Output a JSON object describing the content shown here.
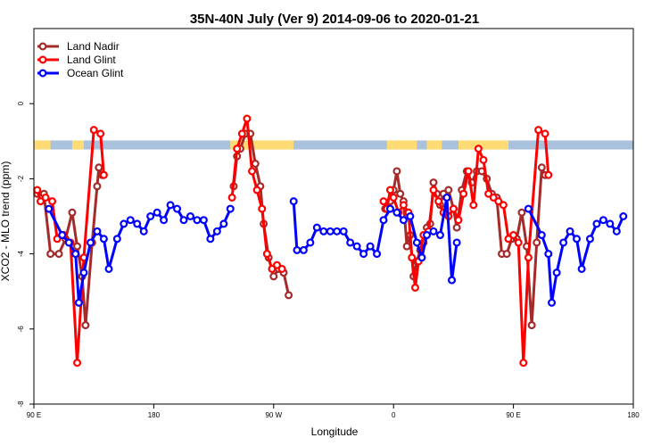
{
  "chart_data": {
    "type": "line",
    "title": "35N-40N July (Ver 9)   2014-09-06 to 2020-01-21",
    "xlabel": "Longitude",
    "ylabel": "XCO2 - MLO trend (ppm)",
    "xlim": [
      0,
      360
    ],
    "ylim": [
      -8,
      2
    ],
    "x_ticks": [
      {
        "value": 0,
        "label": "90 E"
      },
      {
        "value": 72,
        "label": "180"
      },
      {
        "value": 144,
        "label": "90 W"
      },
      {
        "value": 216,
        "label": "0"
      },
      {
        "value": 288,
        "label": "90 E"
      },
      {
        "value": 360,
        "label": "180"
      }
    ],
    "y_ticks": [
      {
        "value": 0,
        "label": "0"
      },
      {
        "value": -2,
        "label": "-2"
      },
      {
        "value": -4,
        "label": "-4"
      },
      {
        "value": -6,
        "label": "-6"
      },
      {
        "value": -8,
        "label": "-8"
      }
    ],
    "legend_position": "top-left",
    "grid": false,
    "land_ocean_band": {
      "y_range": [
        -1.22,
        -0.98
      ],
      "land_color": "#FFDC73",
      "ocean_color": "#A9C1DB",
      "land_segments": [
        [
          0,
          10
        ],
        [
          23,
          30
        ],
        [
          118,
          156
        ],
        [
          212,
          230
        ],
        [
          236,
          245
        ],
        [
          255,
          262
        ],
        [
          262,
          285
        ]
      ]
    },
    "series": [
      {
        "name": "Land Nadir",
        "color": "#A52A2A",
        "points": [
          [
            2,
            -2.4
          ],
          [
            6,
            -2.4
          ],
          [
            10,
            -4.0
          ],
          [
            15,
            -4.0
          ],
          [
            19,
            -3.6
          ],
          [
            23,
            -2.9
          ],
          [
            26,
            -3.8
          ],
          [
            29,
            -4.6
          ],
          [
            31,
            -5.9
          ],
          [
            35,
            -3.7
          ],
          [
            38,
            -2.2
          ],
          [
            39,
            -1.7
          ],
          [
            41,
            -1.9
          ],
          [
            120,
            -2.2
          ],
          [
            122,
            -1.4
          ],
          [
            124,
            -1.2
          ],
          [
            127,
            -0.8
          ],
          [
            130,
            -0.8
          ],
          [
            133,
            -1.6
          ],
          [
            136,
            -2.2
          ],
          [
            138,
            -3.2
          ],
          [
            141,
            -4.1
          ],
          [
            144,
            -4.6
          ],
          [
            147,
            -4.4
          ],
          [
            150,
            -4.5
          ],
          [
            153,
            -5.1
          ],
          [
            211,
            -2.8
          ],
          [
            214,
            -2.6
          ],
          [
            216,
            -2.3
          ],
          [
            218,
            -1.8
          ],
          [
            220,
            -2.4
          ],
          [
            222,
            -2.6
          ],
          [
            224,
            -3.8
          ],
          [
            226,
            -3.5
          ],
          [
            228,
            -4.6
          ],
          [
            230,
            -4.2
          ],
          [
            232,
            -3.9
          ],
          [
            234,
            -3.7
          ],
          [
            236,
            -3.3
          ],
          [
            238,
            -3.2
          ],
          [
            240,
            -2.1
          ],
          [
            242,
            -2.4
          ],
          [
            244,
            -2.7
          ],
          [
            246,
            -2.4
          ],
          [
            249,
            -2.3
          ],
          [
            252,
            -2.8
          ],
          [
            254,
            -3.3
          ],
          [
            257,
            -2.3
          ],
          [
            260,
            -1.8
          ],
          [
            263,
            -2.1
          ],
          [
            266,
            -1.8
          ],
          [
            269,
            -1.8
          ],
          [
            272,
            -2.0
          ],
          [
            275,
            -2.4
          ],
          [
            278,
            -2.5
          ],
          [
            281,
            -4.0
          ],
          [
            284,
            -4.0
          ],
          [
            287,
            -3.6
          ],
          [
            290,
            -3.6
          ],
          [
            293,
            -2.9
          ],
          [
            296,
            -3.8
          ],
          [
            299,
            -5.9
          ],
          [
            302,
            -3.7
          ],
          [
            305,
            -1.7
          ],
          [
            307,
            -1.9
          ]
        ]
      },
      {
        "name": "Land Glint",
        "color": "#FF0000",
        "points": [
          [
            2,
            -2.3
          ],
          [
            4,
            -2.6
          ],
          [
            7,
            -2.5
          ],
          [
            11,
            -2.6
          ],
          [
            14,
            -3.6
          ],
          [
            18,
            -3.5
          ],
          [
            22,
            -3.7
          ],
          [
            26,
            -6.9
          ],
          [
            30,
            -4.1
          ],
          [
            36,
            -0.7
          ],
          [
            40,
            -0.8
          ],
          [
            42,
            -1.9
          ],
          [
            119,
            -2.5
          ],
          [
            122,
            -1.2
          ],
          [
            125,
            -0.8
          ],
          [
            128,
            -0.4
          ],
          [
            131,
            -1.8
          ],
          [
            134,
            -2.3
          ],
          [
            137,
            -2.8
          ],
          [
            140,
            -4.0
          ],
          [
            143,
            -4.4
          ],
          [
            146,
            -4.3
          ],
          [
            149,
            -4.4
          ],
          [
            210,
            -2.6
          ],
          [
            212,
            -2.8
          ],
          [
            214,
            -2.3
          ],
          [
            216,
            -2.5
          ],
          [
            219,
            -2.9
          ],
          [
            222,
            -2.7
          ],
          [
            225,
            -2.9
          ],
          [
            227,
            -4.1
          ],
          [
            229,
            -4.9
          ],
          [
            231,
            -4.2
          ],
          [
            234,
            -3.5
          ],
          [
            237,
            -3.4
          ],
          [
            240,
            -2.3
          ],
          [
            243,
            -2.6
          ],
          [
            246,
            -2.9
          ],
          [
            249,
            -3.0
          ],
          [
            252,
            -2.8
          ],
          [
            255,
            -3.1
          ],
          [
            258,
            -2.4
          ],
          [
            261,
            -1.8
          ],
          [
            264,
            -2.7
          ],
          [
            267,
            -1.2
          ],
          [
            270,
            -1.5
          ],
          [
            273,
            -2.4
          ],
          [
            276,
            -2.5
          ],
          [
            279,
            -2.6
          ],
          [
            282,
            -2.7
          ],
          [
            285,
            -3.6
          ],
          [
            288,
            -3.5
          ],
          [
            291,
            -3.7
          ],
          [
            294,
            -6.9
          ],
          [
            297,
            -4.1
          ],
          [
            303,
            -0.7
          ],
          [
            307,
            -0.8
          ],
          [
            309,
            -1.9
          ]
        ]
      },
      {
        "name": "Ocean Glint",
        "color": "#0000FF",
        "points": [
          [
            9,
            -2.8
          ],
          [
            17,
            -3.5
          ],
          [
            21,
            -3.7
          ],
          [
            25,
            -4.0
          ],
          [
            27,
            -5.3
          ],
          [
            30,
            -4.5
          ],
          [
            34,
            -3.7
          ],
          [
            38,
            -3.4
          ],
          [
            42,
            -3.6
          ],
          [
            45,
            -4.4
          ],
          [
            50,
            -3.6
          ],
          [
            54,
            -3.2
          ],
          [
            58,
            -3.1
          ],
          [
            62,
            -3.2
          ],
          [
            66,
            -3.4
          ],
          [
            70,
            -3.0
          ],
          [
            74,
            -2.9
          ],
          [
            78,
            -3.1
          ],
          [
            82,
            -2.7
          ],
          [
            86,
            -2.8
          ],
          [
            90,
            -3.1
          ],
          [
            94,
            -3.0
          ],
          [
            98,
            -3.1
          ],
          [
            102,
            -3.1
          ],
          [
            106,
            -3.6
          ],
          [
            110,
            -3.4
          ],
          [
            114,
            -3.2
          ],
          [
            118,
            -2.8
          ],
          [
            156,
            -2.6
          ],
          [
            158,
            -3.9
          ],
          [
            162,
            -3.9
          ],
          [
            166,
            -3.7
          ],
          [
            170,
            -3.3
          ],
          [
            174,
            -3.4
          ],
          [
            178,
            -3.4
          ],
          [
            182,
            -3.4
          ],
          [
            186,
            -3.4
          ],
          [
            190,
            -3.7
          ],
          [
            194,
            -3.8
          ],
          [
            198,
            -4.0
          ],
          [
            202,
            -3.8
          ],
          [
            206,
            -4.0
          ],
          [
            210,
            -3.1
          ],
          [
            214,
            -2.8
          ],
          [
            218,
            -2.9
          ],
          [
            222,
            -3.1
          ],
          [
            226,
            -3.0
          ],
          [
            230,
            -3.7
          ],
          [
            233,
            -4.1
          ],
          [
            236,
            -3.5
          ],
          [
            240,
            -3.4
          ],
          [
            244,
            -3.5
          ],
          [
            248,
            -2.5
          ],
          [
            251,
            -4.7
          ],
          [
            254,
            -3.7
          ],
          [
            297,
            -2.8
          ],
          [
            305,
            -3.5
          ],
          [
            309,
            -4.0
          ],
          [
            311,
            -5.3
          ],
          [
            314,
            -4.5
          ],
          [
            318,
            -3.7
          ],
          [
            322,
            -3.4
          ],
          [
            326,
            -3.6
          ],
          [
            329,
            -4.4
          ],
          [
            334,
            -3.6
          ],
          [
            338,
            -3.2
          ],
          [
            342,
            -3.1
          ],
          [
            346,
            -3.2
          ],
          [
            350,
            -3.4
          ],
          [
            354,
            -3.0
          ]
        ]
      }
    ]
  }
}
